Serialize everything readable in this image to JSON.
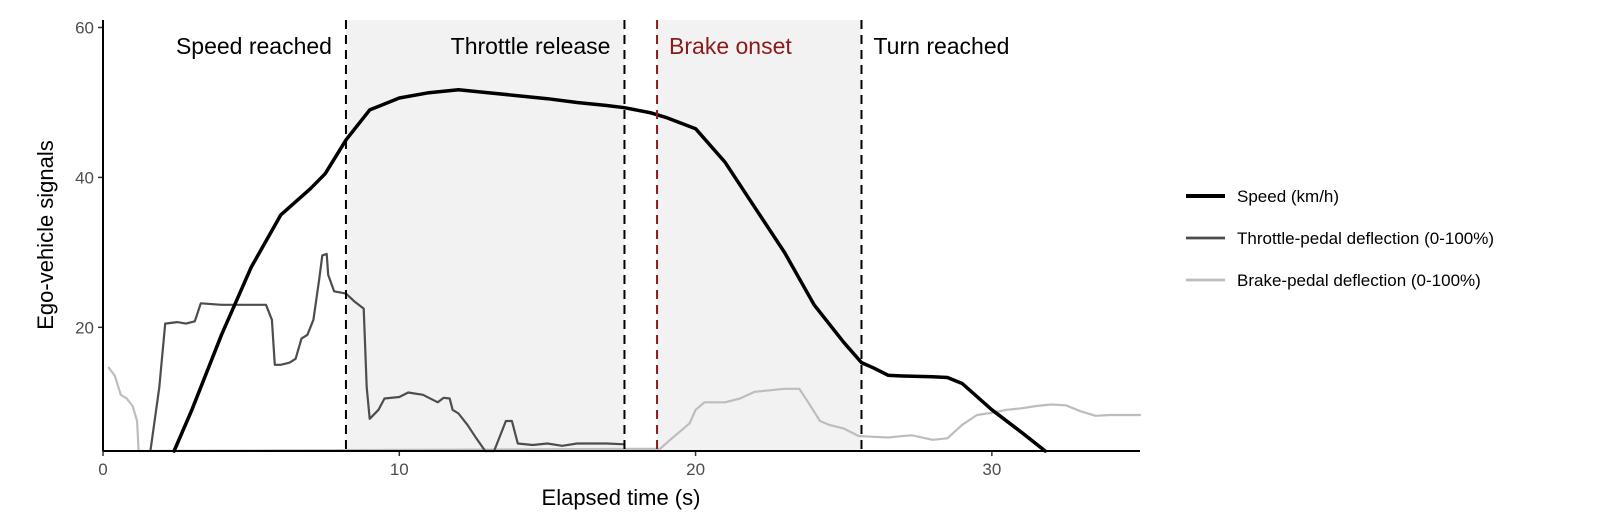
{
  "chart_data": {
    "type": "line",
    "title": "",
    "xlabel": "Elapsed time (s)",
    "ylabel": "Ego-vehicle signals",
    "xlim": [
      0,
      35
    ],
    "ylim": [
      3.5,
      61
    ],
    "x_ticks": [
      0,
      10,
      20,
      30
    ],
    "y_ticks": [
      20,
      40,
      60
    ],
    "grid": false,
    "legend_position": "right",
    "shaded_regions": [
      {
        "x": [
          8.2,
          17.6
        ],
        "color": "#f2f2f2"
      },
      {
        "x": [
          18.7,
          25.6
        ],
        "color": "#f2f2f2"
      }
    ],
    "events": [
      {
        "label": "Speed reached",
        "x": 8.2,
        "color": "#000000",
        "label_side": "left"
      },
      {
        "label": "Throttle release",
        "x": 17.6,
        "color": "#000000",
        "label_side": "left"
      },
      {
        "label": "Brake onset",
        "x": 18.7,
        "color": "#8b1a1a",
        "label_side": "right"
      },
      {
        "label": "Turn reached",
        "x": 25.6,
        "color": "#000000",
        "label_side": "right"
      }
    ],
    "series": [
      {
        "name": "Speed (km/h)",
        "color": "#000000",
        "width": 3.5,
        "points": [
          [
            2.4,
            3.5
          ],
          [
            3.0,
            9
          ],
          [
            4.0,
            19
          ],
          [
            5.0,
            28
          ],
          [
            6.0,
            35
          ],
          [
            7.0,
            38.5
          ],
          [
            7.5,
            40.5
          ],
          [
            8.2,
            45
          ],
          [
            9.0,
            49
          ],
          [
            10.0,
            50.6
          ],
          [
            11.0,
            51.3
          ],
          [
            12.0,
            51.7
          ],
          [
            13.0,
            51.3
          ],
          [
            14.0,
            50.9
          ],
          [
            15.0,
            50.5
          ],
          [
            16.0,
            50
          ],
          [
            17.0,
            49.6
          ],
          [
            17.6,
            49.3
          ],
          [
            18.5,
            48.6
          ],
          [
            19.0,
            48
          ],
          [
            20.0,
            46.5
          ],
          [
            21.0,
            42
          ],
          [
            22.0,
            36
          ],
          [
            23.0,
            30
          ],
          [
            24.0,
            23
          ],
          [
            24.5,
            20.5
          ],
          [
            25.0,
            18
          ],
          [
            25.6,
            15.3
          ],
          [
            26.0,
            14.6
          ],
          [
            26.5,
            13.6
          ],
          [
            27.0,
            13.5
          ],
          [
            28.0,
            13.4
          ],
          [
            28.5,
            13.3
          ],
          [
            29.0,
            12.5
          ],
          [
            30.0,
            9
          ],
          [
            31.0,
            6
          ],
          [
            31.8,
            3.5
          ]
        ]
      },
      {
        "name": "Throttle-pedal deflection (0-100%)",
        "color": "#4d4d4d",
        "width": 2.2,
        "points": [
          [
            1.6,
            3.5
          ],
          [
            1.9,
            12
          ],
          [
            2.1,
            20.5
          ],
          [
            2.5,
            20.7
          ],
          [
            2.8,
            20.5
          ],
          [
            3.1,
            20.8
          ],
          [
            3.3,
            23.2
          ],
          [
            4.0,
            23
          ],
          [
            5.0,
            23
          ],
          [
            5.5,
            23
          ],
          [
            5.7,
            21
          ],
          [
            5.8,
            15
          ],
          [
            6.0,
            15
          ],
          [
            6.3,
            15.3
          ],
          [
            6.5,
            15.8
          ],
          [
            6.7,
            18.5
          ],
          [
            6.9,
            19
          ],
          [
            7.1,
            21
          ],
          [
            7.3,
            26.5
          ],
          [
            7.4,
            29.6
          ],
          [
            7.55,
            29.8
          ],
          [
            7.6,
            27
          ],
          [
            7.8,
            24.8
          ],
          [
            8.2,
            24.5
          ],
          [
            8.5,
            23.4
          ],
          [
            8.8,
            22.5
          ],
          [
            8.9,
            12
          ],
          [
            9.0,
            7.8
          ],
          [
            9.3,
            9
          ],
          [
            9.5,
            10.5
          ],
          [
            10.0,
            10.7
          ],
          [
            10.3,
            11.3
          ],
          [
            10.8,
            11
          ],
          [
            11.0,
            10.6
          ],
          [
            11.3,
            10
          ],
          [
            11.5,
            10.6
          ],
          [
            11.7,
            10.5
          ],
          [
            11.8,
            9
          ],
          [
            12.0,
            8.5
          ],
          [
            12.3,
            7
          ],
          [
            12.6,
            5.2
          ],
          [
            12.9,
            3.5
          ],
          [
            13.2,
            3.5
          ],
          [
            13.6,
            7.5
          ],
          [
            13.8,
            7.5
          ],
          [
            14.0,
            4.5
          ],
          [
            14.5,
            4.3
          ],
          [
            15.0,
            4.5
          ],
          [
            15.5,
            4.2
          ],
          [
            16.0,
            4.5
          ],
          [
            17.0,
            4.5
          ],
          [
            17.6,
            4.4
          ]
        ]
      },
      {
        "name": "Brake-pedal deflection (0-100%)",
        "color": "#bdbdbd",
        "width": 2.2,
        "points": [
          [
            0.2,
            14.6
          ],
          [
            0.4,
            13.5
          ],
          [
            0.6,
            11
          ],
          [
            0.8,
            10.5
          ],
          [
            1.0,
            9.5
          ],
          [
            1.15,
            7.5
          ],
          [
            1.2,
            3.5
          ],
          [
            18.8,
            3.8
          ],
          [
            19.2,
            5.2
          ],
          [
            19.5,
            6.2
          ],
          [
            19.8,
            7.2
          ],
          [
            20.0,
            9
          ],
          [
            20.3,
            10
          ],
          [
            21.0,
            10
          ],
          [
            21.5,
            10.5
          ],
          [
            22.0,
            11.4
          ],
          [
            22.5,
            11.6
          ],
          [
            23.0,
            11.8
          ],
          [
            23.5,
            11.8
          ],
          [
            23.8,
            10
          ],
          [
            24.2,
            7.5
          ],
          [
            24.5,
            7
          ],
          [
            25.0,
            6.5
          ],
          [
            25.5,
            5.5
          ],
          [
            26.0,
            5.4
          ],
          [
            26.5,
            5.3
          ],
          [
            27.0,
            5.5
          ],
          [
            27.3,
            5.6
          ],
          [
            28.0,
            5
          ],
          [
            28.5,
            5.2
          ],
          [
            29.0,
            7
          ],
          [
            29.5,
            8.3
          ],
          [
            30.0,
            8.6
          ],
          [
            30.5,
            9
          ],
          [
            31.0,
            9.2
          ],
          [
            31.5,
            9.5
          ],
          [
            32.0,
            9.7
          ],
          [
            32.5,
            9.6
          ],
          [
            33.0,
            8.8
          ],
          [
            33.5,
            8.2
          ],
          [
            34.0,
            8.3
          ],
          [
            35.0,
            8.3
          ]
        ]
      }
    ]
  }
}
